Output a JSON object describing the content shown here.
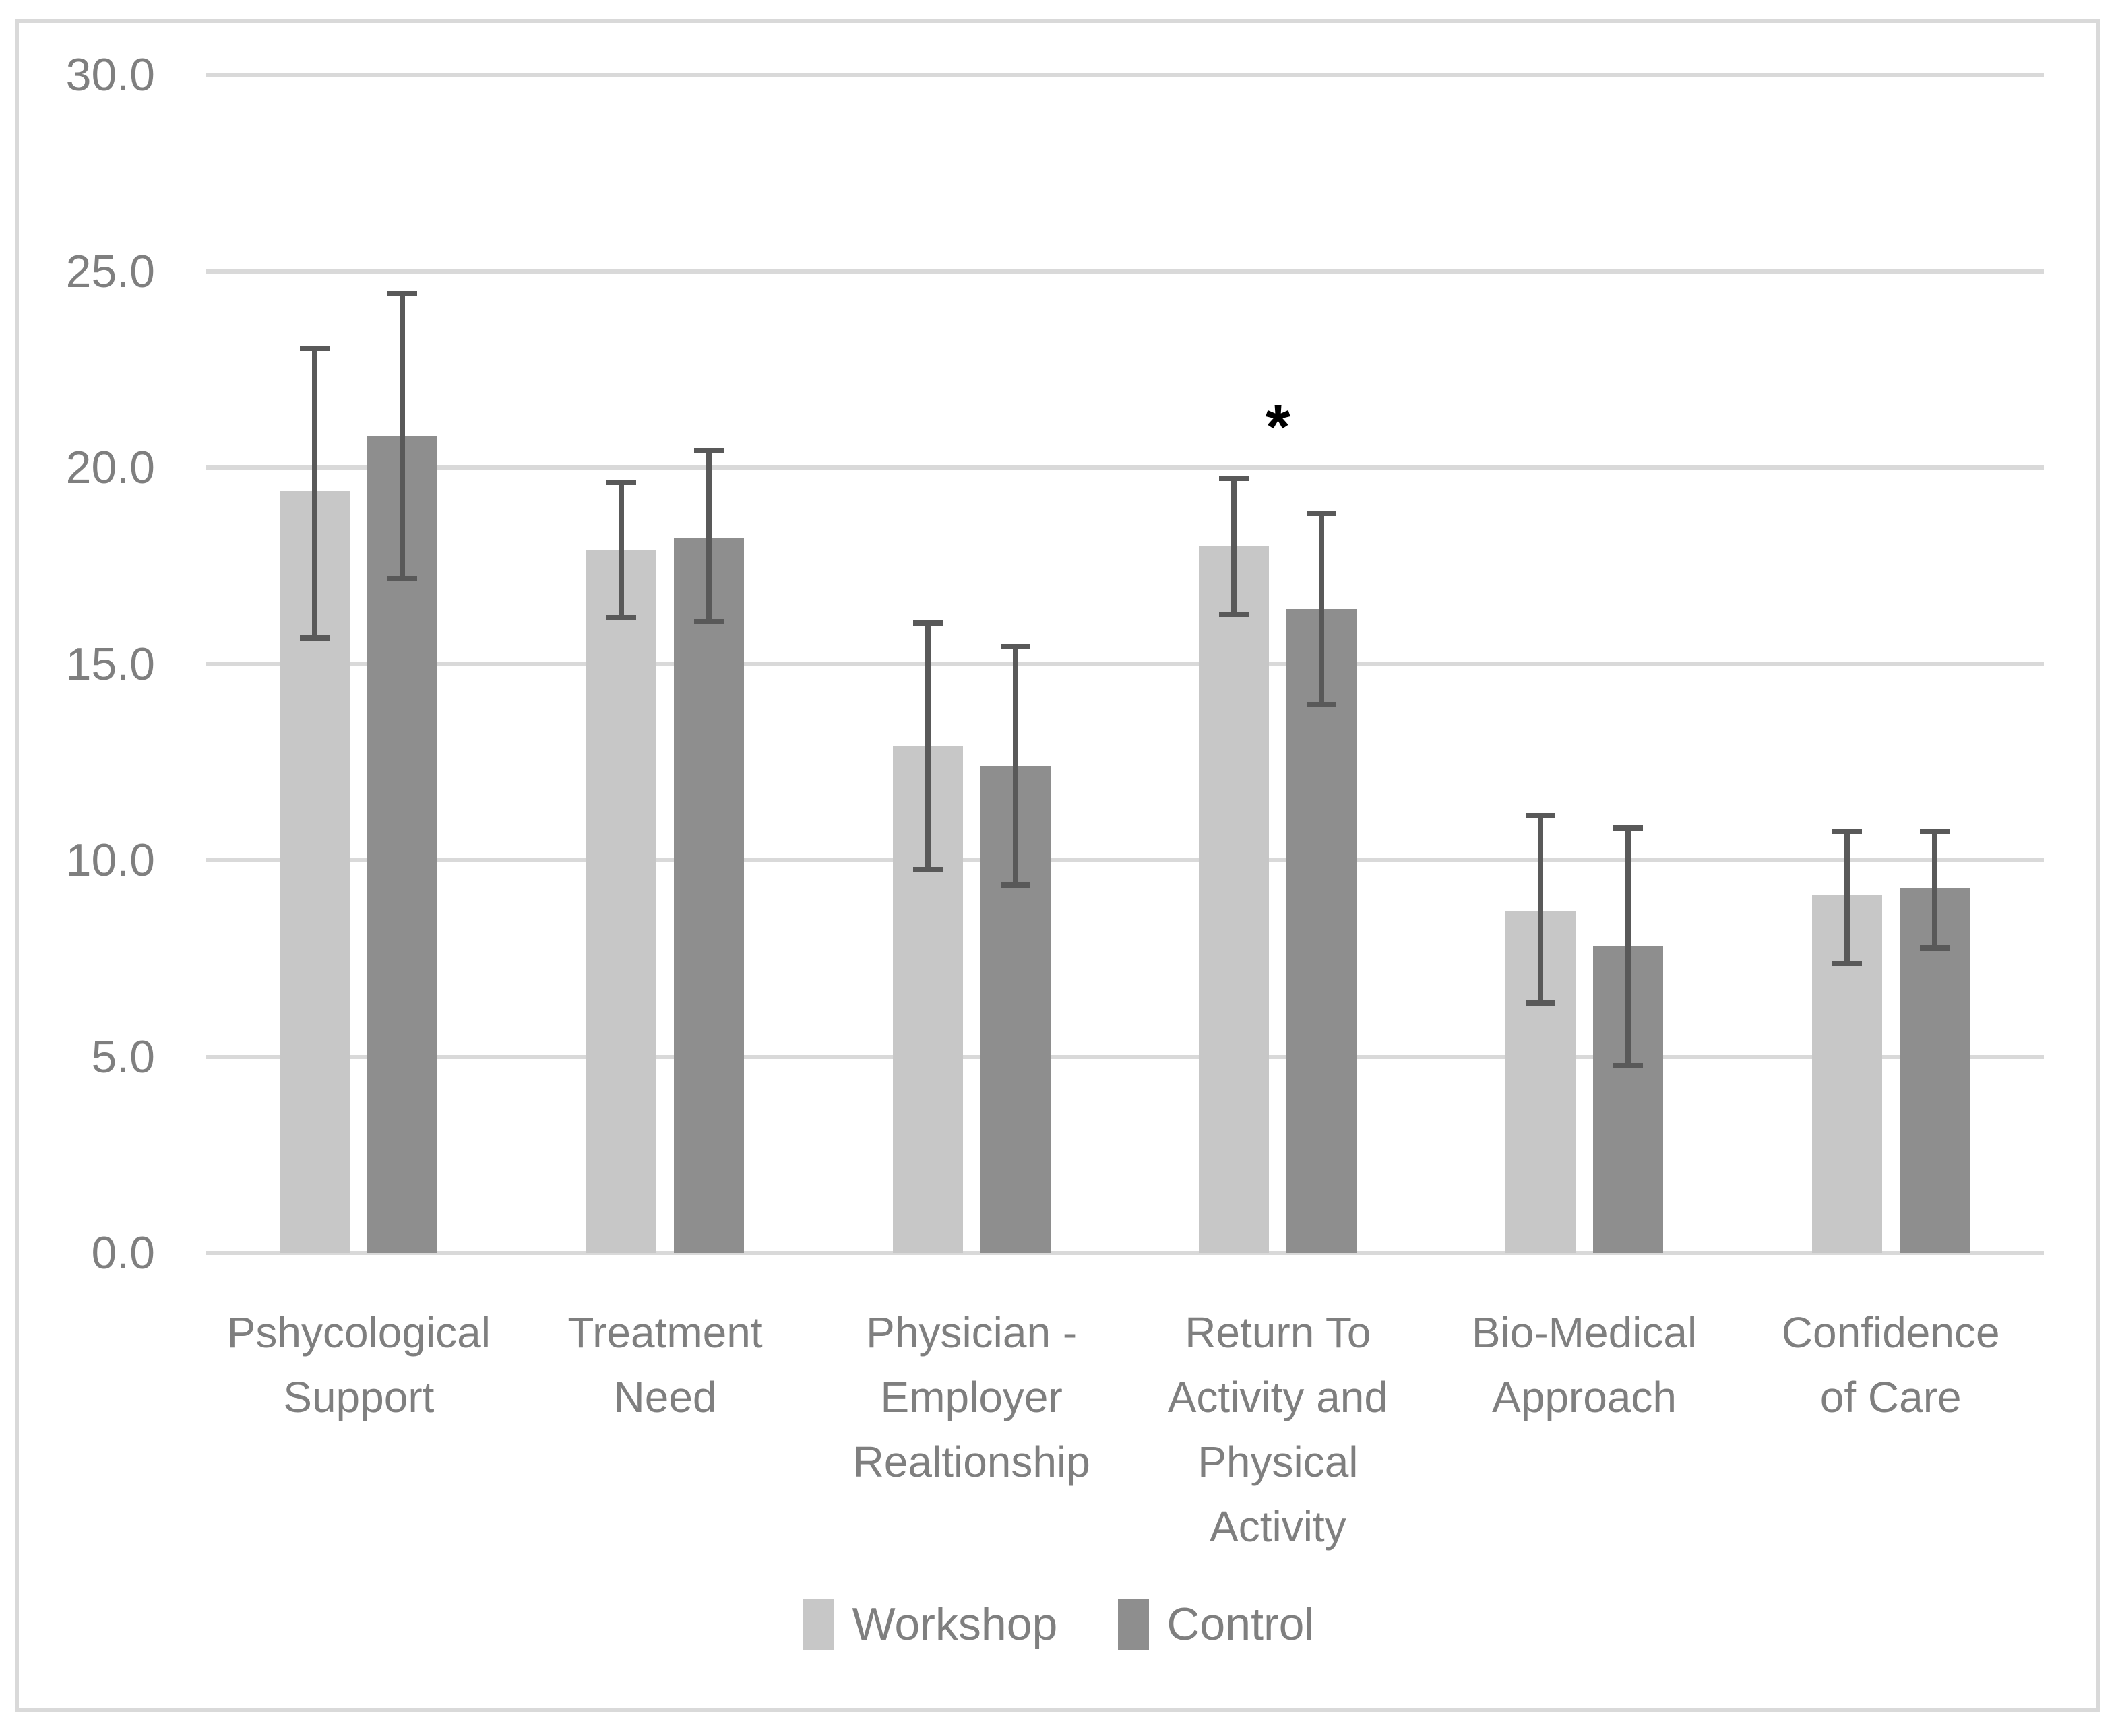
{
  "chart_data": {
    "type": "bar",
    "title": "",
    "xlabel": "",
    "ylabel": "",
    "ylim": [
      0,
      30
    ],
    "ytick_values": [
      0,
      5,
      10,
      15,
      20,
      25,
      30
    ],
    "ytick_labels": [
      "0.0",
      "5.0",
      "10.0",
      "15.0",
      "20.0",
      "25.0",
      "30.0"
    ],
    "grid": true,
    "legend_position": "bottom-center",
    "categories": [
      "Pshycological Support",
      "Treatment Need",
      "Physician - Employer Realtionship",
      "Return To Activity and Physical Activity",
      "Bio-Medical Approach",
      "Confidence of Care"
    ],
    "category_label_lines": [
      [
        "Pshycological",
        "Support"
      ],
      [
        "Treatment",
        "Need"
      ],
      [
        "Physician -",
        "Employer",
        "Realtionship"
      ],
      [
        "Return To",
        "Activity and",
        "Physical",
        "Activity"
      ],
      [
        "Bio-Medical",
        "Approach"
      ],
      [
        "Confidence",
        "of Care"
      ]
    ],
    "series": [
      {
        "name": "Workshop",
        "color": "#c7c7c7",
        "values": [
          19.4,
          17.9,
          12.9,
          18.0,
          8.7,
          9.1
        ],
        "error_low": [
          15.6,
          16.1,
          9.7,
          16.2,
          6.3,
          7.3
        ],
        "error_high": [
          23.1,
          19.7,
          16.1,
          19.8,
          11.2,
          10.8
        ]
      },
      {
        "name": "Control",
        "color": "#8e8e8e",
        "values": [
          20.8,
          18.2,
          12.4,
          16.4,
          7.8,
          9.3
        ],
        "error_low": [
          17.1,
          16.0,
          9.3,
          13.9,
          4.7,
          7.7
        ],
        "error_high": [
          24.5,
          20.5,
          15.5,
          18.9,
          10.9,
          10.8
        ]
      }
    ],
    "annotations": [
      {
        "text": "*",
        "category_index": 3,
        "y": 21.5
      }
    ]
  },
  "legend": {
    "items": [
      {
        "label": "Workshop",
        "color": "#c7c7c7"
      },
      {
        "label": "Control",
        "color": "#8e8e8e"
      }
    ]
  },
  "colors": {
    "background": "#ffffff",
    "frame_border": "#d9d9d9",
    "gridline": "#d9d9d9",
    "axis_text": "#7f7f7f",
    "error_bar": "#595959",
    "annotation": "#000000"
  }
}
